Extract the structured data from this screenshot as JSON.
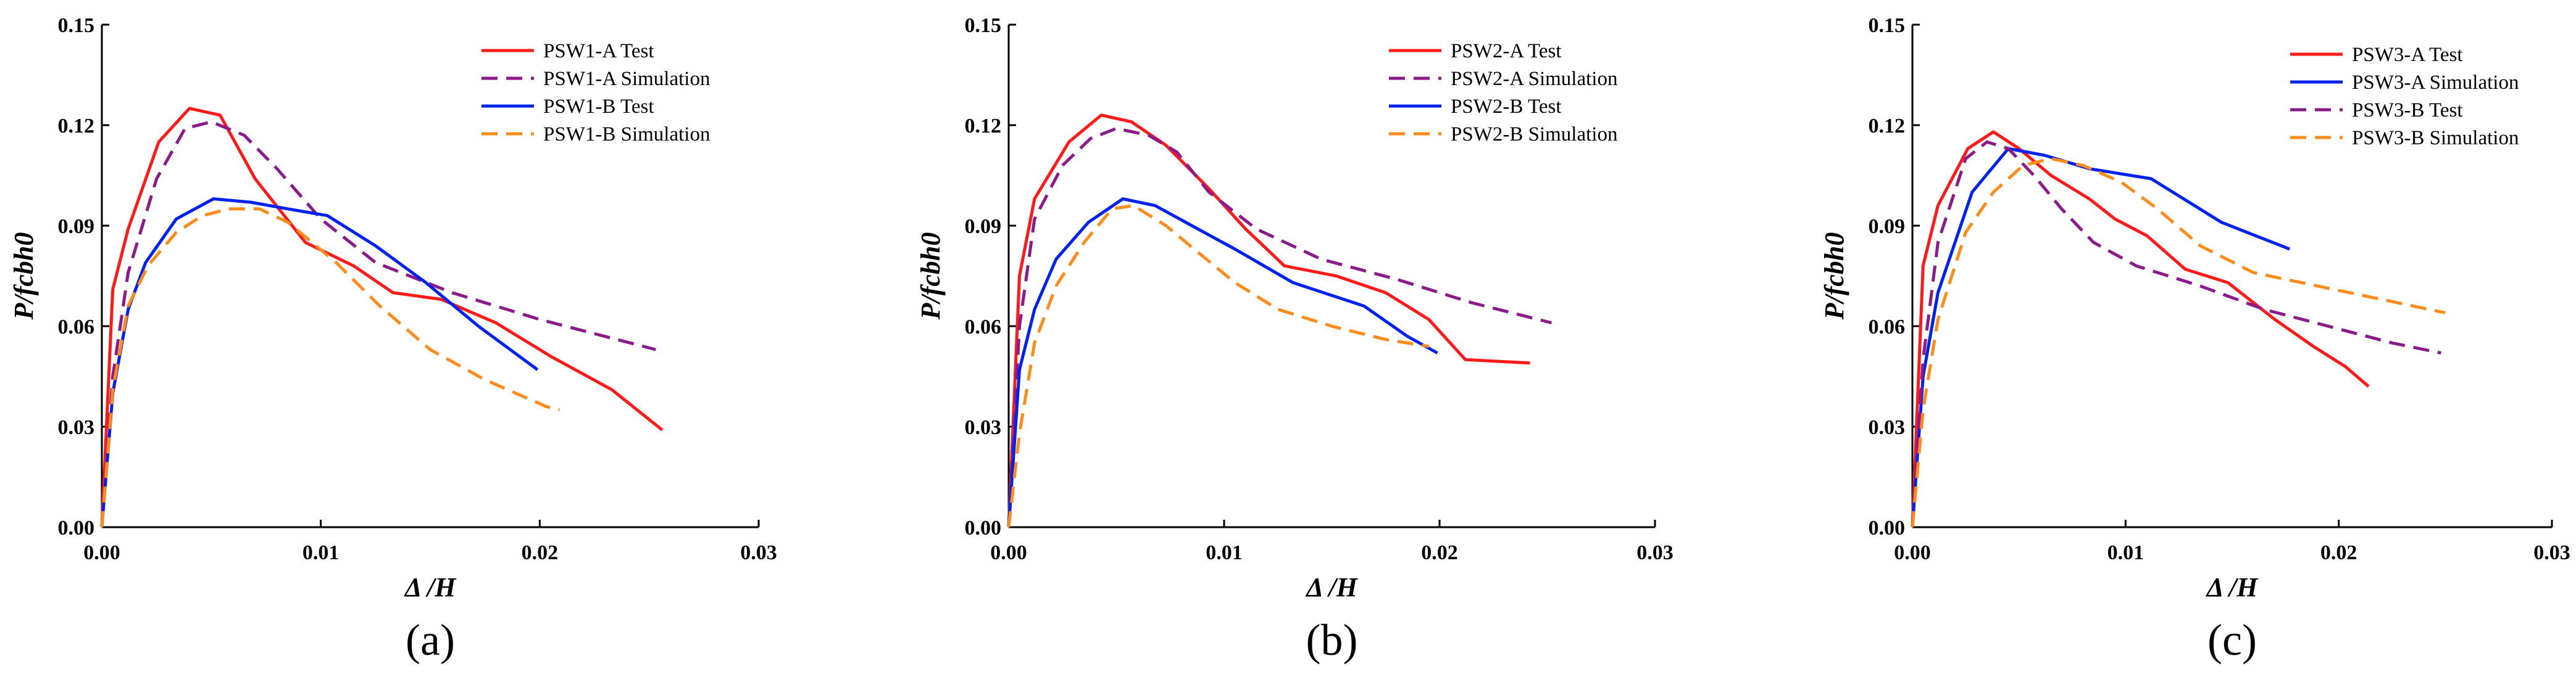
{
  "chart_data": [
    {
      "type": "line",
      "panel_label": "(a)",
      "xlabel": "Δ /H",
      "ylabel": "P/fcbh0",
      "xlim": [
        0,
        0.03
      ],
      "ylim": [
        0,
        0.15
      ],
      "xticks": [
        "0.00",
        "0.01",
        "0.02",
        "0.03"
      ],
      "yticks": [
        "0.00",
        "0.03",
        "0.06",
        "0.09",
        "0.12",
        "0.15"
      ],
      "grid": false,
      "legend_position": "top-right",
      "series": [
        {
          "name": "PSW1-A Test",
          "color": "#ff1a1a",
          "dash": "solid",
          "x": [
            0,
            0.0005,
            0.0012,
            0.0026,
            0.004,
            0.0054,
            0.007,
            0.0093,
            0.0115,
            0.0133,
            0.0155,
            0.018,
            0.0205,
            0.0233,
            0.0256
          ],
          "y": [
            0,
            0.071,
            0.089,
            0.115,
            0.125,
            0.123,
            0.104,
            0.085,
            0.078,
            0.07,
            0.068,
            0.061,
            0.051,
            0.041,
            0.029
          ]
        },
        {
          "name": "PSW1-A Simulation",
          "color": "#8b1a8b",
          "dash": "dashed",
          "x": [
            0,
            0.0005,
            0.0012,
            0.0025,
            0.0038,
            0.005,
            0.0065,
            0.008,
            0.01,
            0.0125,
            0.016,
            0.02,
            0.0253
          ],
          "y": [
            0,
            0.045,
            0.076,
            0.104,
            0.119,
            0.121,
            0.117,
            0.107,
            0.092,
            0.079,
            0.07,
            0.062,
            0.053
          ]
        },
        {
          "name": "PSW1-B Test",
          "color": "#0022ee",
          "dash": "solid",
          "x": [
            0,
            0.0005,
            0.0012,
            0.002,
            0.0034,
            0.0051,
            0.0068,
            0.0085,
            0.0103,
            0.0125,
            0.0148,
            0.0172,
            0.0199
          ],
          "y": [
            0,
            0.04,
            0.065,
            0.079,
            0.092,
            0.098,
            0.097,
            0.095,
            0.093,
            0.084,
            0.073,
            0.06,
            0.047
          ]
        },
        {
          "name": "PSW1-B Simulation",
          "color": "#ff8c1a",
          "dash": "dashed",
          "x": [
            0,
            0.0005,
            0.0012,
            0.0021,
            0.0034,
            0.0046,
            0.0058,
            0.0072,
            0.0085,
            0.0107,
            0.0127,
            0.015,
            0.0175,
            0.0203,
            0.0209
          ],
          "y": [
            0,
            0.041,
            0.066,
            0.078,
            0.088,
            0.093,
            0.095,
            0.095,
            0.091,
            0.079,
            0.066,
            0.053,
            0.044,
            0.036,
            0.035
          ]
        }
      ]
    },
    {
      "type": "line",
      "panel_label": "(b)",
      "xlabel": "Δ /H",
      "ylabel": "P/fcbh0",
      "xlim": [
        0,
        0.03
      ],
      "ylim": [
        0,
        0.15
      ],
      "xticks": [
        "0.00",
        "0.01",
        "0.02",
        "0.03"
      ],
      "yticks": [
        "0.00",
        "0.03",
        "0.06",
        "0.09",
        "0.12",
        "0.15"
      ],
      "grid": false,
      "legend_position": "top-right",
      "series": [
        {
          "name": "PSW2-A Test",
          "color": "#ff1a1a",
          "dash": "solid",
          "x": [
            0,
            0.0005,
            0.0012,
            0.0028,
            0.0043,
            0.0057,
            0.0073,
            0.0093,
            0.011,
            0.0128,
            0.0152,
            0.0175,
            0.0195,
            0.0212,
            0.0242
          ],
          "y": [
            0,
            0.075,
            0.098,
            0.115,
            0.123,
            0.121,
            0.114,
            0.101,
            0.089,
            0.078,
            0.075,
            0.07,
            0.062,
            0.05,
            0.049
          ]
        },
        {
          "name": "PSW2-A Simulation",
          "color": "#8b1a8b",
          "dash": "dashed",
          "x": [
            0,
            0.0005,
            0.0012,
            0.0025,
            0.0038,
            0.005,
            0.0065,
            0.0078,
            0.0093,
            0.0115,
            0.0145,
            0.018,
            0.0215,
            0.0252
          ],
          "y": [
            0,
            0.06,
            0.092,
            0.108,
            0.116,
            0.119,
            0.117,
            0.112,
            0.1,
            0.089,
            0.08,
            0.074,
            0.067,
            0.061
          ]
        },
        {
          "name": "PSW2-B Test",
          "color": "#0022ee",
          "dash": "solid",
          "x": [
            0,
            0.0005,
            0.0012,
            0.0022,
            0.0037,
            0.0053,
            0.0068,
            0.0085,
            0.0105,
            0.0132,
            0.0165,
            0.0185,
            0.0199
          ],
          "y": [
            0,
            0.047,
            0.065,
            0.08,
            0.091,
            0.098,
            0.096,
            0.09,
            0.083,
            0.073,
            0.066,
            0.057,
            0.052
          ]
        },
        {
          "name": "PSW2-B Simulation",
          "color": "#ff8c1a",
          "dash": "dashed",
          "x": [
            0,
            0.0005,
            0.0012,
            0.0022,
            0.0035,
            0.0048,
            0.0058,
            0.0073,
            0.0088,
            0.0105,
            0.0125,
            0.015,
            0.0175,
            0.0195
          ],
          "y": [
            0,
            0.028,
            0.055,
            0.072,
            0.085,
            0.095,
            0.096,
            0.09,
            0.082,
            0.073,
            0.065,
            0.06,
            0.056,
            0.054
          ]
        }
      ]
    },
    {
      "type": "line",
      "panel_label": "(c)",
      "xlabel": "Δ /H",
      "ylabel": "P/fcbh0",
      "xlim": [
        0,
        0.03
      ],
      "ylim": [
        0,
        0.15
      ],
      "xticks": [
        "0.00",
        "0.01",
        "0.02",
        "0.03"
      ],
      "yticks": [
        "0.00",
        "0.03",
        "0.06",
        "0.09",
        "0.12",
        "0.15"
      ],
      "grid": false,
      "legend_position": "top-right",
      "series": [
        {
          "name": "PSW3-A Test",
          "color": "#ff1a1a",
          "dash": "solid",
          "x": [
            0,
            0.0005,
            0.0012,
            0.0026,
            0.0038,
            0.005,
            0.0065,
            0.0083,
            0.0095,
            0.011,
            0.0128,
            0.0148,
            0.017,
            0.0188,
            0.0203,
            0.0214
          ],
          "y": [
            0,
            0.078,
            0.096,
            0.113,
            0.118,
            0.113,
            0.105,
            0.098,
            0.092,
            0.087,
            0.077,
            0.073,
            0.062,
            0.054,
            0.048,
            0.042
          ]
        },
        {
          "name": "PSW3-A Simulation",
          "color": "#0022ee",
          "dash": "solid",
          "x": [
            0,
            0.0005,
            0.0012,
            0.0028,
            0.0045,
            0.0062,
            0.0083,
            0.0112,
            0.0145,
            0.0177
          ],
          "y": [
            0,
            0.045,
            0.07,
            0.1,
            0.113,
            0.111,
            0.107,
            0.104,
            0.091,
            0.083
          ]
        },
        {
          "name": "PSW3-B Test",
          "color": "#8b1a8b",
          "dash": "dashed",
          "x": [
            0,
            0.0005,
            0.0012,
            0.0025,
            0.0035,
            0.0045,
            0.0057,
            0.007,
            0.0085,
            0.0105,
            0.0135,
            0.0165,
            0.0195,
            0.0225,
            0.0248
          ],
          "y": [
            0,
            0.05,
            0.085,
            0.11,
            0.115,
            0.113,
            0.105,
            0.095,
            0.085,
            0.078,
            0.072,
            0.065,
            0.06,
            0.055,
            0.052
          ]
        },
        {
          "name": "PSW3-B Simulation",
          "color": "#ff8c1a",
          "dash": "dashed",
          "x": [
            0,
            0.0005,
            0.0012,
            0.0025,
            0.0038,
            0.0052,
            0.0065,
            0.008,
            0.0098,
            0.0115,
            0.0135,
            0.016,
            0.019,
            0.022,
            0.025
          ],
          "y": [
            0,
            0.035,
            0.062,
            0.088,
            0.1,
            0.108,
            0.11,
            0.108,
            0.103,
            0.095,
            0.084,
            0.076,
            0.072,
            0.068,
            0.064
          ]
        }
      ]
    }
  ]
}
